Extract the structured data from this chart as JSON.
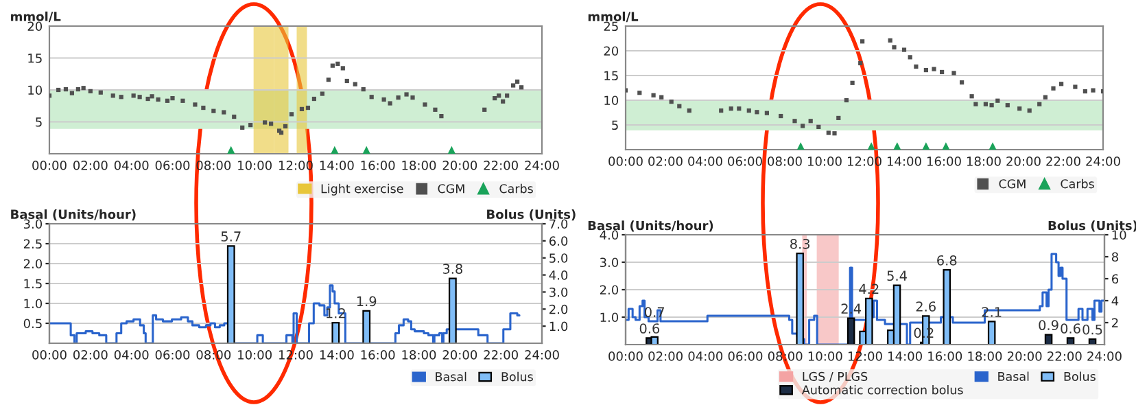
{
  "chart_data": [
    {
      "type": "scatter",
      "ylabel": "mmol/L",
      "xlim": [
        0,
        24
      ],
      "ylim": [
        0,
        20
      ],
      "yticks": [
        5,
        10,
        15,
        20
      ],
      "grid": "y",
      "legend": "bottom right",
      "xticks": [
        {
          "value": 0,
          "label": "00:00"
        },
        {
          "value": 2,
          "label": "02:00"
        },
        {
          "value": 4,
          "label": "04:00"
        },
        {
          "value": 6,
          "label": "06:00"
        },
        {
          "value": 8,
          "label": "08:00"
        },
        {
          "value": 10,
          "label": "10:00"
        },
        {
          "value": 12,
          "label": "12:00"
        },
        {
          "value": 14,
          "label": "14:00"
        },
        {
          "value": 16,
          "label": "16:00"
        },
        {
          "value": 18,
          "label": "18:00"
        },
        {
          "value": 20,
          "label": "20:00"
        },
        {
          "value": 22,
          "label": "22:00"
        },
        {
          "value": 24,
          "label": "24:00"
        }
      ],
      "bands": [
        {
          "axis": "y",
          "from": 3.9,
          "to": 10,
          "color": "#cfeed3"
        },
        {
          "axis": "x",
          "from": 9.95,
          "to": 10.95,
          "label": "Light exercise",
          "color": "#e8c63a"
        },
        {
          "axis": "x",
          "from": 10.95,
          "to": 11.65,
          "color": "#e8c63a"
        },
        {
          "axis": "x",
          "from": 12.05,
          "to": 12.55,
          "color": "#e8c63a"
        }
      ],
      "series": [
        {
          "name": "CGM",
          "marker": "square",
          "color": "#505050",
          "x": [
            0,
            0.44,
            0.8,
            1.1,
            1.4,
            1.66,
            2.0,
            2.5,
            3.1,
            3.5,
            4.1,
            4.4,
            4.8,
            5.0,
            5.3,
            5.75,
            6.0,
            6.5,
            7.1,
            7.5,
            8.0,
            8.5,
            9.0,
            9.4,
            9.8,
            10.5,
            10.8,
            11.2,
            11.3,
            11.5,
            11.8,
            12.3,
            12.6,
            12.9,
            13.3,
            13.6,
            13.8,
            14.05,
            14.3,
            14.5,
            14.9,
            15.3,
            15.7,
            16.3,
            16.6,
            17.0,
            17.4,
            17.7,
            18.3,
            18.8,
            19.1,
            21.2,
            21.7,
            21.9,
            22.1,
            22.3,
            22.6,
            22.8,
            23.0
          ],
          "values": [
            9.1,
            10.0,
            10.1,
            9.5,
            10.1,
            10.3,
            9.8,
            9.6,
            9.1,
            8.9,
            9.1,
            8.9,
            8.6,
            9.0,
            8.5,
            8.3,
            8.7,
            8.3,
            7.7,
            7.2,
            6.7,
            6.5,
            5.8,
            4.1,
            4.5,
            4.9,
            4.7,
            3.6,
            3.3,
            4.3,
            6.2,
            7.0,
            7.2,
            8.6,
            9.4,
            11.6,
            13.8,
            14.1,
            13.4,
            11.4,
            10.9,
            10.1,
            8.9,
            8.5,
            7.9,
            8.8,
            9.3,
            8.8,
            7.7,
            6.9,
            5.9,
            6.9,
            8.7,
            9.1,
            8.2,
            9.1,
            10.7,
            11.3,
            10.4
          ]
        },
        {
          "name": "Carbs",
          "marker": "triangle",
          "color": "#1aa35a",
          "x": [
            8.85,
            13.9,
            15.45,
            19.6
          ],
          "values": [
            0.5,
            0.5,
            0.5,
            0.5
          ]
        }
      ]
    },
    {
      "type": "scatter",
      "ylabel": "mmol/L",
      "xlim": [
        0,
        24
      ],
      "ylim": [
        0,
        25
      ],
      "yticks": [
        5,
        10,
        15,
        20,
        25
      ],
      "grid": "y",
      "legend": "bottom right",
      "xticks": [
        {
          "value": 0,
          "label": "00:00"
        },
        {
          "value": 2,
          "label": "02:00"
        },
        {
          "value": 4,
          "label": "04:00"
        },
        {
          "value": 6,
          "label": "06:00"
        },
        {
          "value": 8,
          "label": "08:00"
        },
        {
          "value": 10,
          "label": "10:00"
        },
        {
          "value": 12,
          "label": "12:00"
        },
        {
          "value": 14,
          "label": "14:00"
        },
        {
          "value": 16,
          "label": "16:00"
        },
        {
          "value": 18,
          "label": "18:00"
        },
        {
          "value": 20,
          "label": "20:00"
        },
        {
          "value": 22,
          "label": "22:00"
        },
        {
          "value": 24,
          "label": "24:00"
        }
      ],
      "bands": [
        {
          "axis": "y",
          "from": 3.9,
          "to": 10,
          "color": "#cfeed3"
        }
      ],
      "series": [
        {
          "name": "CGM",
          "marker": "square",
          "color": "#505050",
          "x": [
            0,
            0.7,
            1.4,
            1.8,
            2.3,
            2.7,
            3.2,
            4.8,
            5.3,
            5.7,
            6.2,
            6.6,
            7.1,
            7.8,
            8.5,
            8.9,
            9.3,
            9.7,
            10.2,
            10.5,
            10.7,
            11.1,
            11.4,
            11.8,
            11.9,
            13.3,
            13.5,
            14.0,
            14.3,
            14.6,
            15.1,
            15.5,
            15.9,
            16.5,
            16.9,
            17.4,
            17.6,
            18.1,
            18.4,
            18.7,
            19.2,
            19.8,
            20.3,
            20.8,
            21.1,
            21.5,
            21.9,
            22.6,
            23.1,
            23.5,
            24.0
          ],
          "values": [
            12.0,
            11.5,
            11.0,
            10.6,
            9.7,
            8.8,
            7.9,
            7.9,
            8.3,
            8.3,
            7.9,
            7.6,
            7.4,
            6.8,
            5.8,
            4.8,
            5.8,
            4.6,
            3.4,
            3.3,
            6.4,
            10.0,
            13.5,
            17.5,
            21.9,
            22.1,
            20.7,
            20.2,
            18.7,
            16.8,
            16.1,
            16.3,
            15.7,
            15.5,
            13.6,
            10.8,
            9.2,
            9.2,
            9.0,
            9.9,
            9.0,
            8.3,
            7.9,
            9.2,
            10.6,
            12.4,
            13.3,
            12.7,
            11.8,
            12.0,
            11.8
          ]
        },
        {
          "name": "Carbs",
          "marker": "triangle",
          "color": "#1aa35a",
          "x": [
            8.8,
            12.35,
            13.65,
            15.1,
            16.1,
            18.45
          ],
          "values": [
            0.6,
            0.6,
            0.6,
            0.6,
            0.6,
            0.6
          ]
        }
      ]
    },
    {
      "type": "step",
      "ylabel": "Basal (Units/hour)",
      "y2label": "Bolus (Units)",
      "xlim": [
        0,
        24
      ],
      "ylim": [
        0,
        3
      ],
      "y2lim": [
        0,
        7
      ],
      "grid": "y",
      "legend": "bottom right",
      "yticks": [
        {
          "value": 0.5,
          "label": "0.5"
        },
        {
          "value": 1,
          "label": "1.0"
        },
        {
          "value": 1.5,
          "label": "1.5"
        },
        {
          "value": 2,
          "label": "2.0"
        },
        {
          "value": 2.5,
          "label": "2.5"
        },
        {
          "value": 3,
          "label": "3.0"
        }
      ],
      "y2ticks": [
        {
          "value": 1,
          "label": "1.0"
        },
        {
          "value": 2,
          "label": "2.0"
        },
        {
          "value": 3,
          "label": "3.0"
        },
        {
          "value": 4,
          "label": "4.0"
        },
        {
          "value": 5,
          "label": "5.0"
        },
        {
          "value": 6,
          "label": "6.0"
        },
        {
          "value": 7,
          "label": "7.0"
        }
      ],
      "xticks": [
        {
          "value": 0,
          "label": "00:00"
        },
        {
          "value": 2,
          "label": "02:00"
        },
        {
          "value": 4,
          "label": "04:00"
        },
        {
          "value": 6,
          "label": "06:00"
        },
        {
          "value": 8,
          "label": "08:00"
        },
        {
          "value": 10,
          "label": "10:00"
        },
        {
          "value": 12,
          "label": "12:00"
        },
        {
          "value": 14,
          "label": "14:00"
        },
        {
          "value": 16,
          "label": "16:00"
        },
        {
          "value": 18,
          "label": "18:00"
        },
        {
          "value": 20,
          "label": "20:00"
        },
        {
          "value": 22,
          "label": "22:00"
        },
        {
          "value": 24,
          "label": "24:00"
        }
      ],
      "series": [
        {
          "name": "Basal",
          "color": "#2a64cc",
          "x": [
            0,
            1.04,
            1.22,
            1.33,
            1.77,
            2.1,
            2.43,
            2.77,
            3.27,
            3.5,
            3.76,
            4.1,
            4.42,
            4.6,
            4.69,
            5.04,
            5.2,
            5.53,
            5.97,
            6.42,
            6.75,
            6.97,
            7.3,
            7.63,
            7.85,
            8.07,
            8.3,
            8.52,
            8.74,
            8.96,
            10.13,
            10.4,
            11.55,
            11.84,
            11.9,
            12.05,
            12.65,
            12.88,
            13.16,
            13.4,
            13.54,
            13.67,
            13.8,
            13.9,
            14.1,
            14.42,
            16.86,
            17.03,
            17.26,
            17.48,
            17.63,
            17.8,
            18.25,
            18.47,
            18.7,
            18.76,
            19.0,
            19.14,
            19.2,
            19.36,
            20.9,
            21.35,
            22.12,
            22.46,
            22.8,
            22.9
          ],
          "values": [
            0.5,
            0.2,
            0,
            0.25,
            0.3,
            0.25,
            0.2,
            0,
            0.25,
            0.5,
            0.55,
            0.6,
            0.45,
            0.25,
            0,
            0.7,
            0.6,
            0.55,
            0.6,
            0.65,
            0.55,
            0.45,
            0.4,
            0.45,
            0.5,
            0.4,
            0.45,
            0.5,
            0.4,
            0,
            0.2,
            0,
            0.2,
            0,
            0.75,
            0,
            0.5,
            1.0,
            0.95,
            0.7,
            0.9,
            1.45,
            1.3,
            1.0,
            0.75,
            0,
            0.25,
            0.45,
            0.6,
            0.55,
            0.35,
            0.3,
            0.25,
            0.2,
            0,
            0.2,
            0.25,
            0,
            0.25,
            0.35,
            0.2,
            0,
            0.35,
            0.75,
            0.7,
            0.7
          ]
        },
        {
          "name": "Bolus",
          "type": "bar",
          "axis": "y2",
          "color": "#80bdf7",
          "x": [
            8.85,
            13.95,
            15.45,
            19.65
          ],
          "values": [
            5.7,
            1.2,
            1.9,
            3.8
          ],
          "value_labels": [
            "5.7",
            "1.2",
            "1.9",
            "3.8"
          ]
        }
      ]
    },
    {
      "type": "step",
      "ylabel": "Basal (Units/hour)",
      "y2label": "Bolus (Units)",
      "xlim": [
        0,
        24
      ],
      "ylim": [
        0,
        4
      ],
      "y2lim": [
        0,
        10
      ],
      "grid": "y",
      "legend": "bottom right",
      "yticks": [
        {
          "value": 1,
          "label": "1.0"
        },
        {
          "value": 2,
          "label": "2.0"
        },
        {
          "value": 3,
          "label": "3.0"
        },
        {
          "value": 4,
          "label": "4.0"
        }
      ],
      "y2ticks": [
        2,
        4,
        6,
        8,
        10
      ],
      "xticks": [
        {
          "value": 0,
          "label": "00:00"
        },
        {
          "value": 2,
          "label": "02:00"
        },
        {
          "value": 4,
          "label": "04:00"
        },
        {
          "value": 6,
          "label": "06:00"
        },
        {
          "value": 8,
          "label": "08:00"
        },
        {
          "value": 10,
          "label": "10:00"
        },
        {
          "value": 12,
          "label": "12:00"
        },
        {
          "value": 14,
          "label": "14:00"
        },
        {
          "value": 16,
          "label": "16:00"
        },
        {
          "value": 18,
          "label": "18:00"
        },
        {
          "value": 20,
          "label": "20:00"
        },
        {
          "value": 22,
          "label": "22:00"
        },
        {
          "value": 24,
          "label": "24:00"
        }
      ],
      "bands": [
        {
          "axis": "x",
          "from": 8.85,
          "to": 9.08,
          "label": "LGS / PLGS",
          "color": "#f4a3a3"
        },
        {
          "axis": "x",
          "from": 9.58,
          "to": 10.68,
          "color": "#f4a3a3"
        }
      ],
      "series": [
        {
          "name": "Automatic correction bolus",
          "type": "bar",
          "axis": "y2",
          "color": "#1c2c44",
          "x": [
            1.2,
            11.3,
            14.95,
            21.2,
            22.3,
            23.4
          ],
          "values": [
            0.6,
            2.4,
            0.2,
            0.9,
            0.6,
            0.5
          ],
          "value_labels": [
            "0.6",
            "2.4",
            "0.2",
            "0.9",
            "0.6",
            "0.5"
          ]
        },
        {
          "name": "Basal",
          "color": "#2a64cc",
          "x": [
            0,
            0.15,
            0.35,
            0.5,
            0.7,
            0.85,
            0.95,
            1.15,
            1.6,
            1.75,
            4.1,
            8.2,
            8.35,
            8.6,
            8.75,
            8.85,
            8.95,
            9.2,
            9.45,
            9.6,
            11.15,
            11.25,
            11.35,
            12.2,
            12.43,
            12.6,
            13.0,
            14.03,
            14.1,
            14.26,
            15.8,
            16.0,
            16.1,
            16.25,
            16.4,
            18.0,
            20.76,
            20.9,
            21.1,
            21.2,
            21.35,
            21.58,
            21.7,
            21.8,
            21.9,
            22.1,
            22.7,
            22.9,
            23.15,
            23.4,
            23.5,
            23.75,
            23.85,
            24.0
          ],
          "values": [
            0.9,
            1.3,
            1.0,
            0.9,
            1.4,
            1.6,
            1.0,
            0.85,
            1.25,
            0.85,
            1.05,
            0.9,
            0.4,
            0.3,
            0.5,
            0.2,
            0,
            0.9,
            1.05,
            0,
            0,
            2.8,
            0.9,
            1.0,
            1.6,
            0.9,
            0.75,
            0.75,
            0,
            0.8,
            1.0,
            1.6,
            2.0,
            1.0,
            0.8,
            1.25,
            1.4,
            1.9,
            1.4,
            2.0,
            3.3,
            3.0,
            2.5,
            2.8,
            2.4,
            0.9,
            1.3,
            0.9,
            1.3,
            0.9,
            1.6,
            1.2,
            1.6,
            1.6
          ]
        },
        {
          "name": "Bolus",
          "type": "bar",
          "axis": "y2",
          "color": "#80bdf7",
          "x": [
            1.45,
            8.74,
            11.9,
            12.2,
            13.3,
            13.6,
            15.05,
            16.1,
            18.35
          ],
          "values": [
            0.7,
            8.3,
            1.2,
            4.2,
            1.3,
            5.4,
            2.6,
            6.8,
            2.1
          ],
          "value_labels": [
            "0.7",
            "8.3",
            null,
            "4.2",
            null,
            "5.4",
            "2.6",
            "6.8",
            "2.1"
          ]
        }
      ]
    }
  ]
}
